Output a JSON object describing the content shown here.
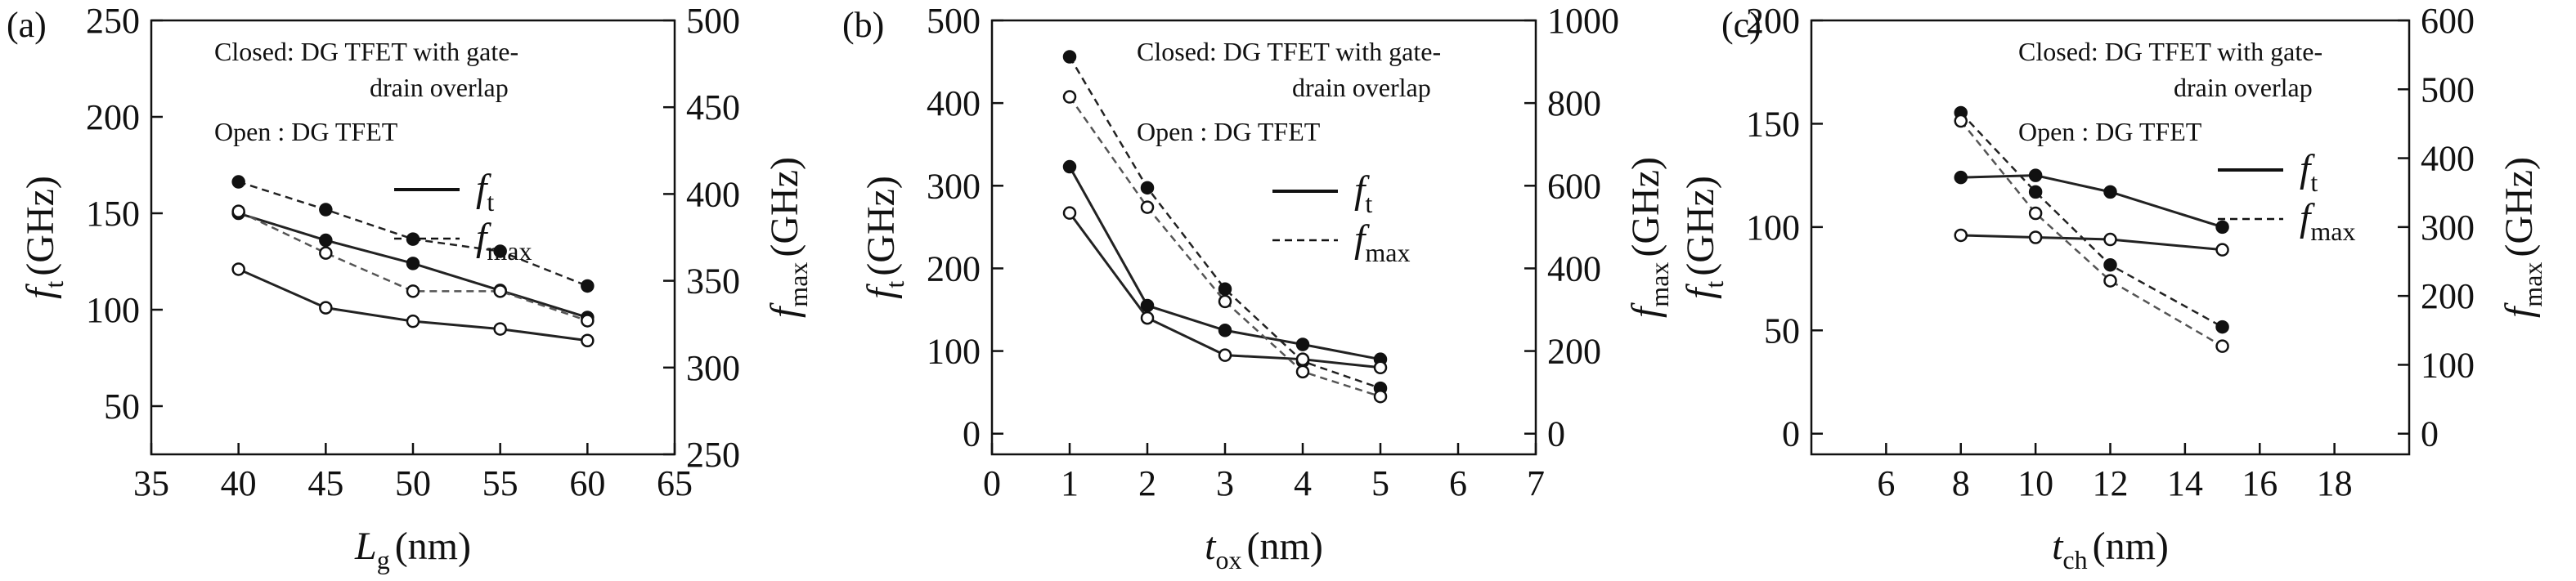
{
  "chart_data": [
    {
      "type": "line",
      "panel_label": "(a)",
      "xlabel": "L",
      "xlabel_sub": "g",
      "xlabel_unit": "(nm)",
      "ylabel": "f",
      "ylabel_sub": "t",
      "ylabel_unit": "(GHz)",
      "y2label": "f",
      "y2label_sub": "max",
      "y2label_unit": "(GHz)",
      "xlim": [
        35,
        65
      ],
      "ylim": [
        25,
        250
      ],
      "y2lim": [
        250,
        500
      ],
      "xticks": [
        35,
        40,
        45,
        50,
        55,
        60,
        65
      ],
      "yticks": [
        50,
        100,
        150,
        200,
        250
      ],
      "y2ticks": [
        250,
        300,
        350,
        400,
        450,
        500
      ],
      "annotation": [
        "Closed: DG TFET with gate-",
        "drain overlap",
        "Open   : DG TFET"
      ],
      "legend": [
        {
          "name": "f",
          "sub": "t",
          "style": "solid"
        },
        {
          "name": "f",
          "sub": "max",
          "style": "dashed"
        }
      ],
      "series": [
        {
          "name": "ft (closed)",
          "axis": "left",
          "style": "solid",
          "marker": "filled",
          "x": [
            40,
            45,
            50,
            55,
            60
          ],
          "y": [
            150,
            136,
            124,
            110,
            96
          ]
        },
        {
          "name": "fmax (closed)",
          "axis": "right",
          "style": "dashed",
          "marker": "filled",
          "x": [
            40,
            45,
            50,
            55,
            60
          ],
          "y": [
            407,
            391,
            374,
            367,
            347
          ]
        },
        {
          "name": "ft (open)",
          "axis": "left",
          "style": "solid",
          "marker": "open",
          "x": [
            40,
            45,
            50,
            55,
            60
          ],
          "y": [
            121,
            101,
            94,
            90,
            84
          ]
        },
        {
          "name": "fmax (open)",
          "axis": "right",
          "style": "dashed",
          "marker": "open",
          "x": [
            40,
            45,
            50,
            55,
            60
          ],
          "y": [
            390,
            366,
            344,
            344,
            327
          ]
        }
      ]
    },
    {
      "type": "line",
      "panel_label": "(b)",
      "xlabel": "t",
      "xlabel_sub": "ox",
      "xlabel_unit": "(nm)",
      "ylabel": "f",
      "ylabel_sub": "t",
      "ylabel_unit": "(GHz)",
      "y2label": "f",
      "y2label_sub": "max",
      "y2label_unit": "(GHz)",
      "xlim": [
        0,
        7
      ],
      "ylim": [
        -25,
        500
      ],
      "y2lim": [
        -50,
        1000
      ],
      "xticks": [
        0,
        1,
        2,
        3,
        4,
        5,
        6,
        7
      ],
      "yticks": [
        0,
        100,
        200,
        300,
        400,
        500
      ],
      "y2ticks": [
        0,
        200,
        400,
        600,
        800,
        1000
      ],
      "annotation": [
        "Closed: DG TFET with gate-",
        "drain overlap",
        "Open   : DG TFET"
      ],
      "legend": [
        {
          "name": "f",
          "sub": "t",
          "style": "solid"
        },
        {
          "name": "f",
          "sub": "max",
          "style": "dashed"
        }
      ],
      "series": [
        {
          "name": "ft (closed)",
          "axis": "left",
          "style": "solid",
          "marker": "filled",
          "x": [
            1,
            2,
            3,
            4,
            5
          ],
          "y": [
            323,
            155,
            125,
            108,
            90
          ]
        },
        {
          "name": "fmax (closed)",
          "axis": "right",
          "style": "dashed",
          "marker": "filled",
          "x": [
            1,
            2,
            3,
            4,
            5
          ],
          "y": [
            912,
            595,
            350,
            175,
            110
          ]
        },
        {
          "name": "ft (open)",
          "axis": "left",
          "style": "solid",
          "marker": "open",
          "x": [
            1,
            2,
            3,
            4,
            5
          ],
          "y": [
            267,
            140,
            95,
            90,
            80
          ]
        },
        {
          "name": "fmax (open)",
          "axis": "right",
          "style": "dashed",
          "marker": "open",
          "x": [
            1,
            2,
            3,
            4,
            5
          ],
          "y": [
            815,
            548,
            320,
            150,
            90
          ]
        }
      ]
    },
    {
      "type": "line",
      "panel_label": "(c)",
      "xlabel": "t",
      "xlabel_sub": "ch",
      "xlabel_unit": "(nm)",
      "ylabel": "f",
      "ylabel_sub": "t",
      "ylabel_unit": "(GHz)",
      "y2label": "f",
      "y2label_sub": "max",
      "y2label_unit": "(GHz)",
      "xlim": [
        4,
        20
      ],
      "ylim": [
        -10,
        200
      ],
      "y2lim": [
        -30,
        600
      ],
      "xticks": [
        6,
        8,
        10,
        12,
        14,
        16,
        18
      ],
      "yticks": [
        0,
        50,
        100,
        150,
        200
      ],
      "y2ticks": [
        0,
        100,
        200,
        300,
        400,
        500,
        600
      ],
      "annotation": [
        "Closed: DG TFET with gate-",
        "drain overlap",
        "Open   : DG TFET"
      ],
      "legend": [
        {
          "name": "f",
          "sub": "t",
          "style": "solid"
        },
        {
          "name": "f",
          "sub": "max",
          "style": "dashed"
        }
      ],
      "series": [
        {
          "name": "ft (closed)",
          "axis": "left",
          "style": "solid",
          "marker": "filled",
          "x": [
            8,
            10,
            12,
            15
          ],
          "y": [
            124,
            125,
            117,
            100
          ]
        },
        {
          "name": "fmax (closed)",
          "axis": "right",
          "style": "dashed",
          "marker": "filled",
          "x": [
            8,
            10,
            12,
            15
          ],
          "y": [
            466,
            351,
            245,
            155
          ]
        },
        {
          "name": "ft (open)",
          "axis": "left",
          "style": "solid",
          "marker": "open",
          "x": [
            8,
            10,
            12,
            15
          ],
          "y": [
            96,
            95,
            94,
            89
          ]
        },
        {
          "name": "fmax (open)",
          "axis": "right",
          "style": "dashed",
          "marker": "open",
          "x": [
            8,
            10,
            12,
            15
          ],
          "y": [
            454,
            320,
            222,
            127
          ]
        }
      ]
    }
  ]
}
